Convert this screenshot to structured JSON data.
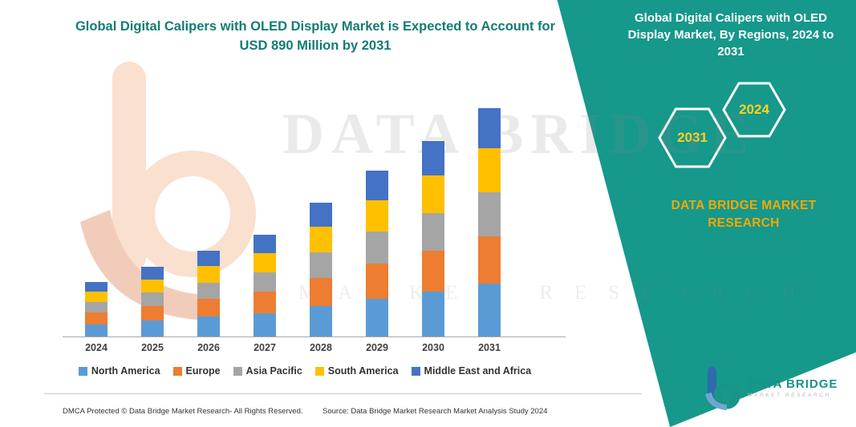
{
  "banner": {
    "title": "Global Digital Calipers with OLED Display Market, By Regions, 2024 to 2031",
    "badges": [
      "2031",
      "2024"
    ],
    "brand": "DATA BRIDGE MARKET RESEARCH",
    "color": "#16988b",
    "badge_text_color": "#ffd21f",
    "brand_color": "#f5a800"
  },
  "watermark": {
    "line1": "DATA BRIDGE",
    "line2": "MARKET RESEARCH"
  },
  "chart_data": {
    "type": "bar",
    "stacked": true,
    "title": "Global Digital Calipers with OLED Display Market is Expected to Account for USD 890 Million by 2031",
    "title_color": "#127c74",
    "unit": "USD Million",
    "xlabel": "",
    "ylabel": "",
    "ylim": [
      0,
      950
    ],
    "y_axis_visible": false,
    "grid": false,
    "legend_position": "bottom",
    "categories": [
      "2024",
      "2025",
      "2026",
      "2027",
      "2028",
      "2029",
      "2030",
      "2031"
    ],
    "series": [
      {
        "name": "North America",
        "color": "#5B9BD5",
        "values": [
          48,
          62,
          77,
          91,
          120,
          148,
          176,
          205
        ]
      },
      {
        "name": "Europe",
        "color": "#ED7D31",
        "values": [
          45,
          57,
          70,
          83,
          109,
          136,
          160,
          187
        ]
      },
      {
        "name": "Asia Pacific",
        "color": "#A5A5A5",
        "values": [
          41,
          52,
          64,
          76,
          100,
          124,
          147,
          171
        ]
      },
      {
        "name": "South America",
        "color": "#FFC000",
        "values": [
          41,
          52,
          64,
          76,
          100,
          124,
          147,
          171
        ]
      },
      {
        "name": "Middle East and Africa",
        "color": "#4472C4",
        "values": [
          37,
          48,
          59,
          70,
          92,
          114,
          134,
          156
        ]
      }
    ],
    "totals": [
      212,
      271,
      334,
      396,
      521,
      646,
      764,
      890
    ]
  },
  "footer": {
    "left": "DMCA Protected © Data Bridge Market Research-  All Rights Reserved.",
    "source": "Source: Data Bridge Market Research  Market Analysis Study 2024"
  },
  "logo": {
    "name": "DATA BRIDGE",
    "sub": "MARKET RESEARCH"
  }
}
